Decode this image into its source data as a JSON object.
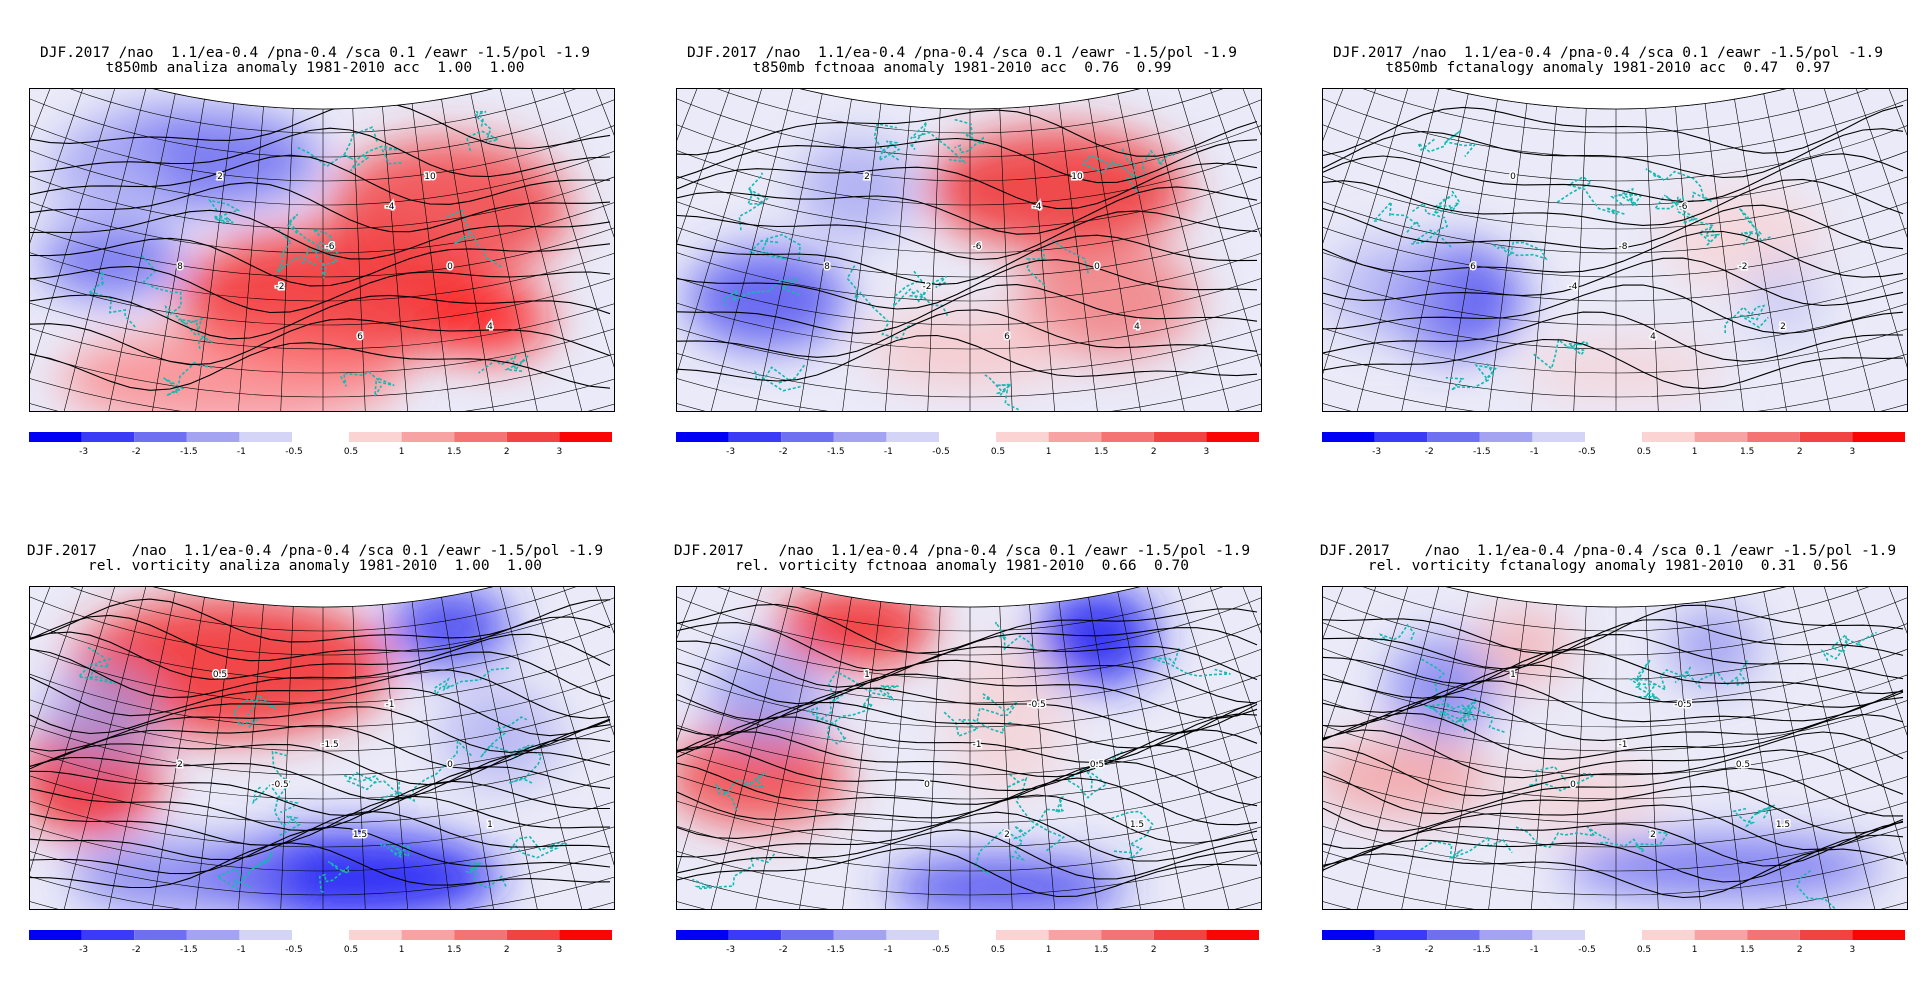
{
  "panels": [
    {
      "line1": "DJF.2017 /nao  1.1/ea-0.4 /pna-0.4 /sca 0.1 /eawr -1.5/pol -1.9",
      "line2": "t850mb analiza anomaly 1981-2010 acc  1.00  1.00",
      "field": "t850mb",
      "model": "analiza",
      "acc": [
        "1.00",
        "1.00"
      ],
      "contour_labels": [
        "-6",
        "-4",
        "-2",
        "0",
        "2",
        "4",
        "6",
        "8",
        "10"
      ]
    },
    {
      "line1": "DJF.2017 /nao  1.1/ea-0.4 /pna-0.4 /sca 0.1 /eawr -1.5/pol -1.9",
      "line2": "t850mb fctnoaa anomaly 1981-2010 acc  0.76  0.99",
      "field": "t850mb",
      "model": "fctnoaa",
      "acc": [
        "0.76",
        "0.99"
      ],
      "contour_labels": [
        "-6",
        "-4",
        "-2",
        "0",
        "2",
        "4",
        "6",
        "8",
        "10"
      ]
    },
    {
      "line1": "DJF.2017 /nao  1.1/ea-0.4 /pna-0.4 /sca 0.1 /eawr -1.5/pol -1.9",
      "line2": "t850mb fctanalogy anomaly 1981-2010 acc  0.47  0.97",
      "field": "t850mb",
      "model": "fctanalogy",
      "acc": [
        "0.47",
        "0.97"
      ],
      "contour_labels": [
        "-8",
        "-6",
        "-4",
        "-2",
        "0",
        "2",
        "4",
        "6"
      ]
    },
    {
      "line1": "DJF.2017    /nao  1.1/ea-0.4 /pna-0.4 /sca 0.1 /eawr -1.5/pol -1.9",
      "line2": "rel. vorticity analiza anomaly 1981-2010  1.00  1.00",
      "field": "rel. vorticity",
      "model": "analiza",
      "acc": [
        "1.00",
        "1.00"
      ],
      "contour_labels": [
        "-1.5",
        "-1",
        "-0.5",
        "0",
        "0.5",
        "1",
        "1.5",
        "2"
      ]
    },
    {
      "line1": "DJF.2017    /nao  1.1/ea-0.4 /pna-0.4 /sca 0.1 /eawr -1.5/pol -1.9",
      "line2": "rel. vorticity fctnoaa anomaly 1981-2010  0.66  0.70",
      "field": "rel. vorticity",
      "model": "fctnoaa",
      "acc": [
        "0.66",
        "0.70"
      ],
      "contour_labels": [
        "-1",
        "-0.5",
        "0",
        "0.5",
        "1",
        "1.5",
        "2"
      ]
    },
    {
      "line1": "DJF.2017    /nao  1.1/ea-0.4 /pna-0.4 /sca 0.1 /eawr -1.5/pol -1.9",
      "line2": "rel. vorticity fctanalogy anomaly 1981-2010  0.31  0.56",
      "field": "rel. vorticity",
      "model": "fctanalogy",
      "acc": [
        "0.31",
        "0.56"
      ],
      "contour_labels": [
        "-1",
        "-0.5",
        "0",
        "0.5",
        "1",
        "1.5",
        "2"
      ]
    }
  ],
  "colorbar": {
    "negative_labels": [
      "-3",
      "-2",
      "-1.5",
      "-1",
      "-0.5"
    ],
    "positive_labels": [
      "0.5",
      "1",
      "1.5",
      "2",
      "3"
    ],
    "negative_colors": [
      "#0000f5",
      "#3b3bf5",
      "#6f6ff2",
      "#a3a3f2",
      "#d4d4f7"
    ],
    "positive_colors": [
      "#fbd3d3",
      "#f7a3a3",
      "#f47474",
      "#f24343",
      "#fa0505"
    ]
  }
}
